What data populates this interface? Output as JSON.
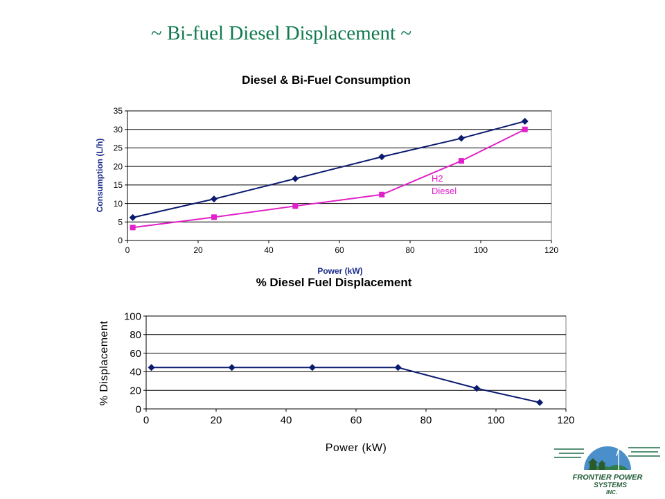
{
  "slide": {
    "title": "~ Bi-fuel Diesel Displacement ~"
  },
  "logo": {
    "line1": "FRONTIER POWER",
    "line2": "SYSTEMS",
    "line3": "INC."
  },
  "colors": {
    "diesel_series": "#0a1a6e",
    "bifuel_series": "#e020c8",
    "displacement_series": "#0a1a6e",
    "title_text": "#0f7a4e"
  },
  "chart_data": [
    {
      "type": "line",
      "title": "Diesel & Bi-Fuel Consumption",
      "xlabel": "Power (kW)",
      "ylabel": "Consumption (L/h)",
      "xlim": [
        0,
        120
      ],
      "ylim": [
        0,
        35
      ],
      "xticks": [
        0,
        20,
        40,
        60,
        80,
        100,
        120
      ],
      "yticks": [
        0,
        5,
        10,
        15,
        20,
        25,
        30,
        35
      ],
      "grid": "horizontal",
      "series": [
        {
          "x": [
            1.5,
            24.5,
            47.5,
            72,
            94.5,
            112.5
          ],
          "values": [
            6.2,
            11.2,
            16.7,
            22.6,
            27.6,
            32.2
          ]
        },
        {
          "x": [
            1.5,
            24.5,
            47.5,
            72,
            94.5,
            112.5
          ],
          "values": [
            3.5,
            6.3,
            9.3,
            12.4,
            21.5,
            30.0
          ]
        }
      ],
      "annotations": [
        "H2",
        "Diesel"
      ]
    },
    {
      "type": "line",
      "title": "% Diesel Fuel Displacement",
      "xlabel": "Power (kW)",
      "ylabel": "% Displacement",
      "xlim": [
        0,
        120
      ],
      "ylim": [
        0,
        100
      ],
      "xticks": [
        0,
        20,
        40,
        60,
        80,
        100,
        120
      ],
      "yticks": [
        0,
        20,
        40,
        60,
        80,
        100
      ],
      "grid": "horizontal",
      "series": [
        {
          "x": [
            1.5,
            24.5,
            47.5,
            72,
            94.5,
            112.5
          ],
          "values": [
            44.6,
            44.6,
            44.6,
            44.6,
            22.1,
            6.9
          ]
        }
      ]
    }
  ]
}
